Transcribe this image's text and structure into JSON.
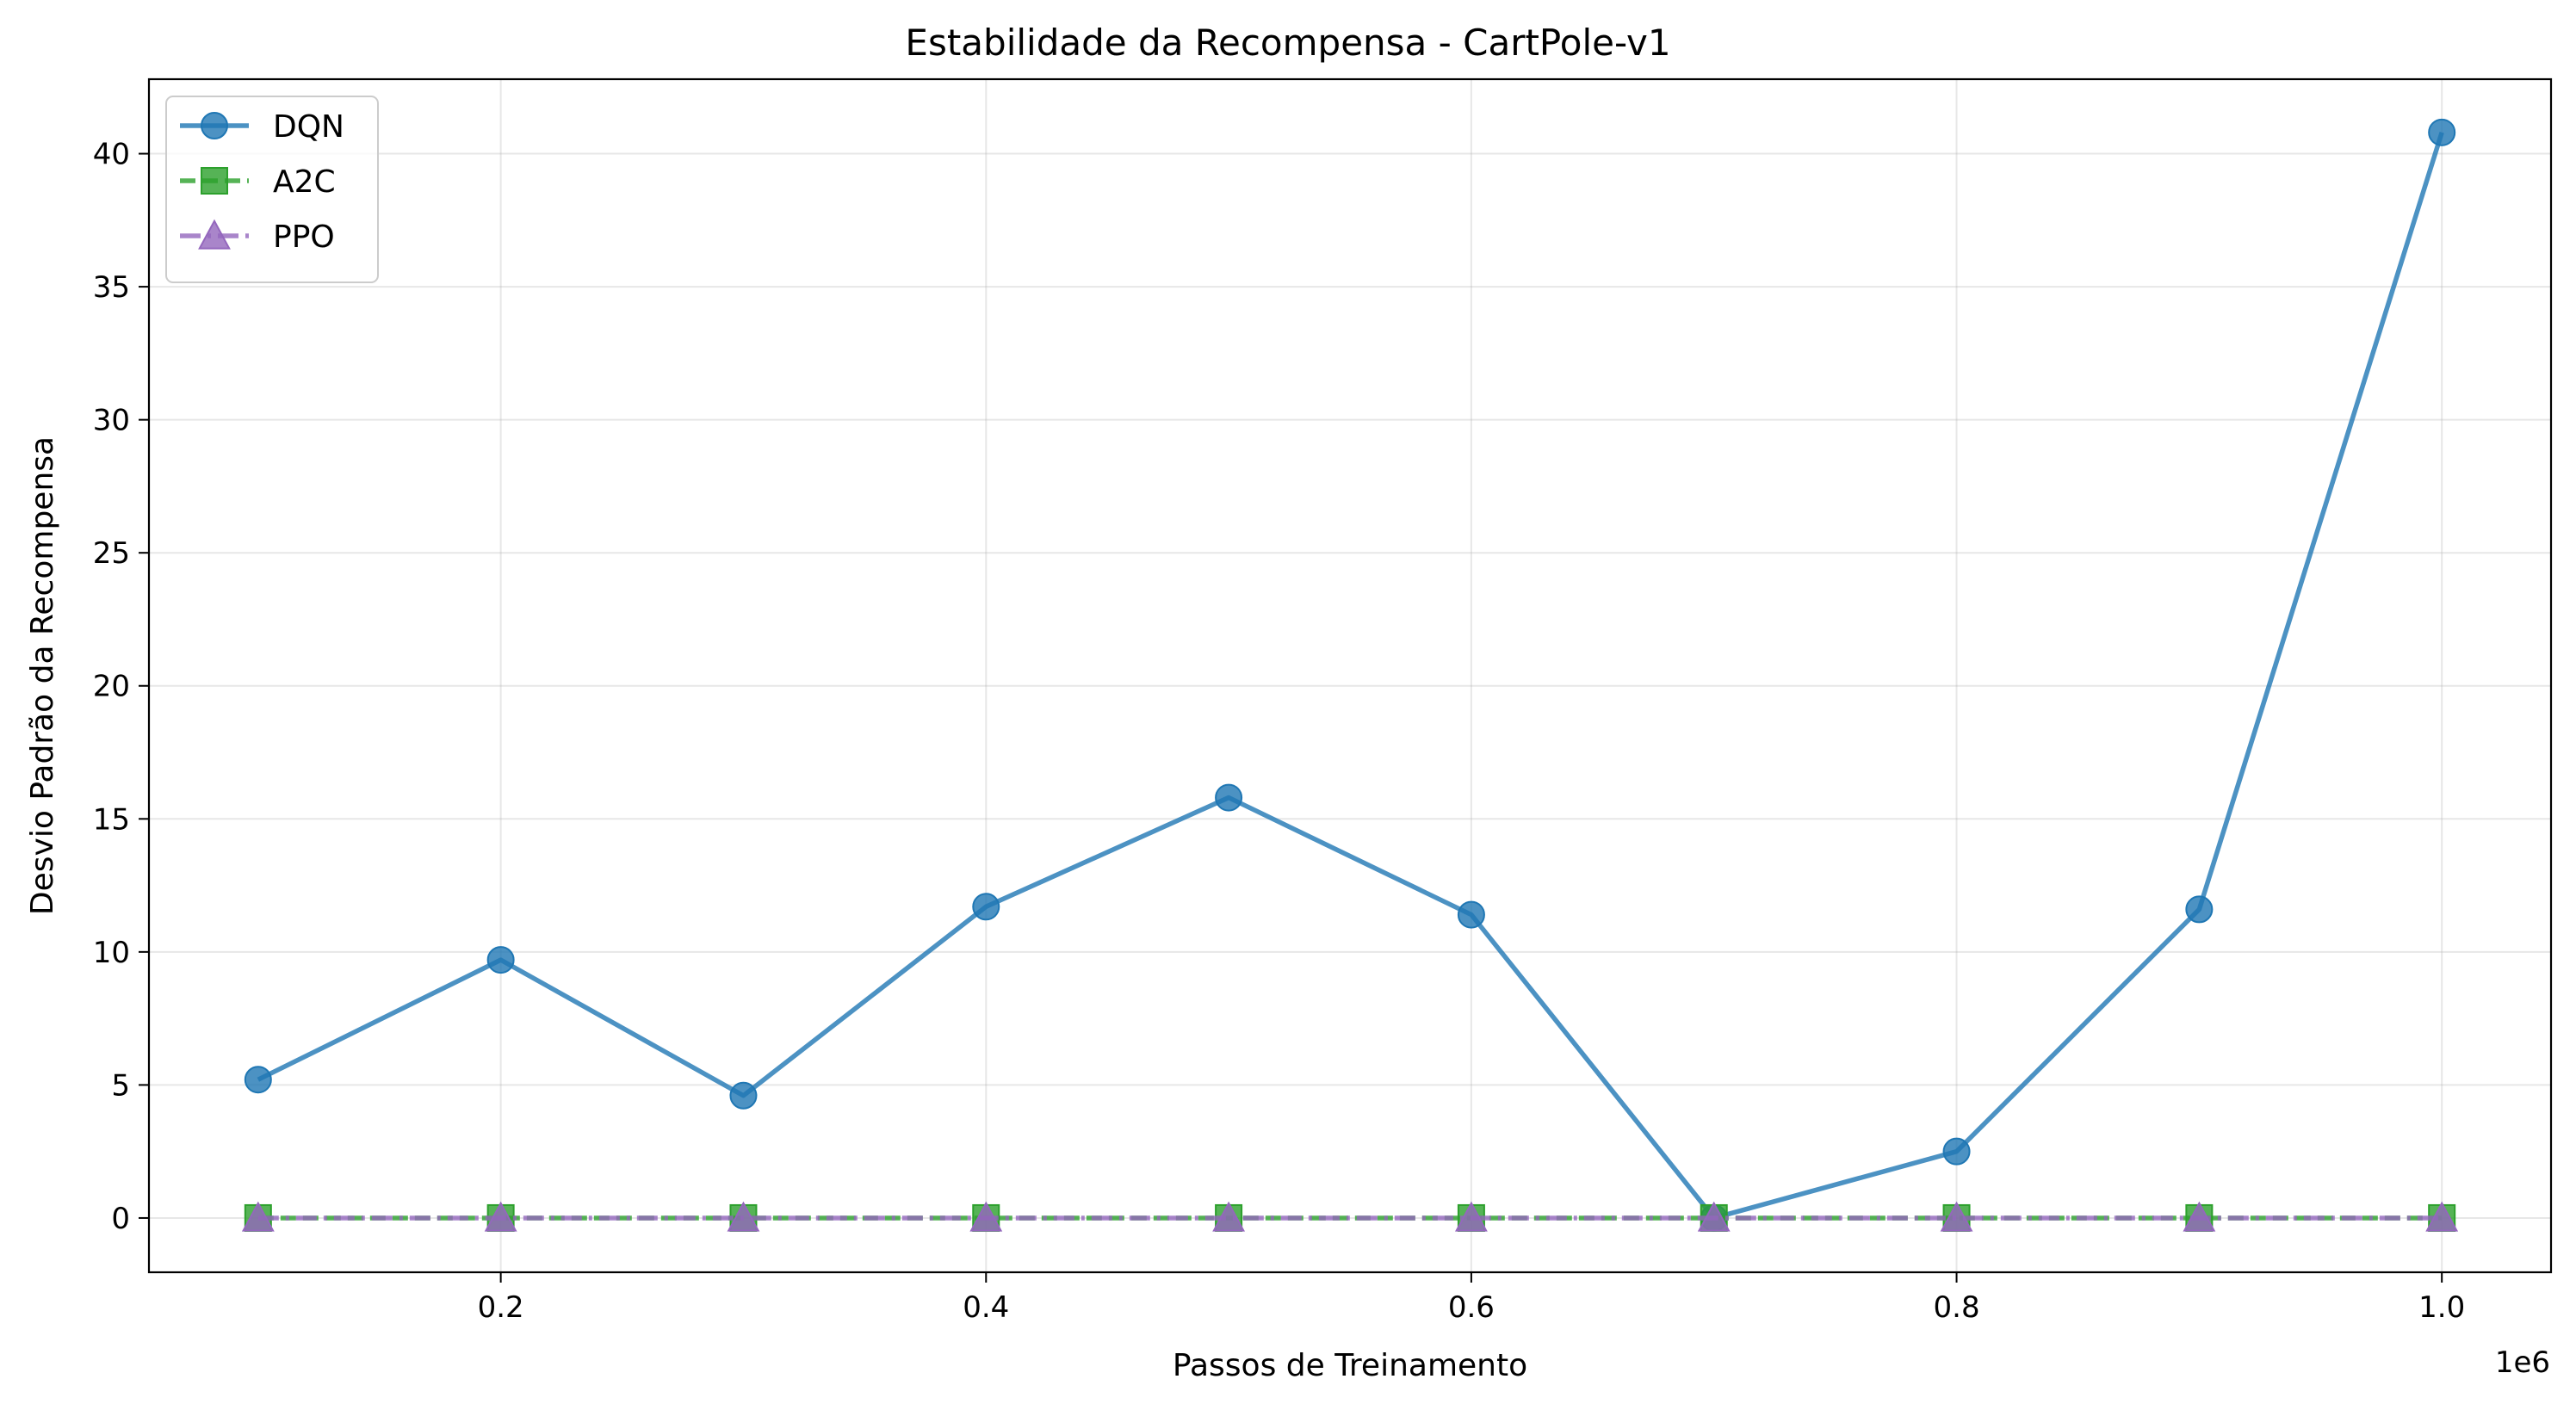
{
  "chart_data": {
    "type": "line",
    "title": "Estabilidade da Recompensa - CartPole-v1",
    "xlabel": "Passos de Treinamento",
    "ylabel": "Desvio Padrão da Recompensa",
    "x_offset_label": "1e6",
    "x": [
      100000,
      200000,
      300000,
      400000,
      500000,
      600000,
      700000,
      800000,
      900000,
      1000000
    ],
    "xlim": [
      55000,
      1045000
    ],
    "ylim": [
      -2.04,
      42.8
    ],
    "xticks": [
      200000,
      400000,
      600000,
      800000,
      1000000
    ],
    "xtick_labels": [
      "0.2",
      "0.4",
      "0.6",
      "0.8",
      "1.0"
    ],
    "yticks": [
      0,
      5,
      10,
      15,
      20,
      25,
      30,
      35,
      40
    ],
    "ytick_labels": [
      "0",
      "5",
      "10",
      "15",
      "20",
      "25",
      "30",
      "35",
      "40"
    ],
    "grid": true,
    "legend_position": "top-left",
    "series": [
      {
        "name": "DQN",
        "values": [
          5.2,
          9.7,
          4.6,
          11.7,
          15.8,
          11.4,
          0.0,
          2.5,
          11.6,
          40.8
        ],
        "color": "#1f77b4",
        "marker": "circle",
        "linestyle": "solid"
      },
      {
        "name": "A2C",
        "values": [
          0,
          0,
          0,
          0,
          0,
          0,
          0,
          0,
          0,
          0
        ],
        "color": "#2ca02c",
        "marker": "square",
        "linestyle": "dashed"
      },
      {
        "name": "PPO",
        "values": [
          0,
          0,
          0,
          0,
          0,
          0,
          0,
          0,
          0,
          0
        ],
        "color": "#9467bd",
        "marker": "triangle",
        "linestyle": "dashdot"
      }
    ]
  }
}
